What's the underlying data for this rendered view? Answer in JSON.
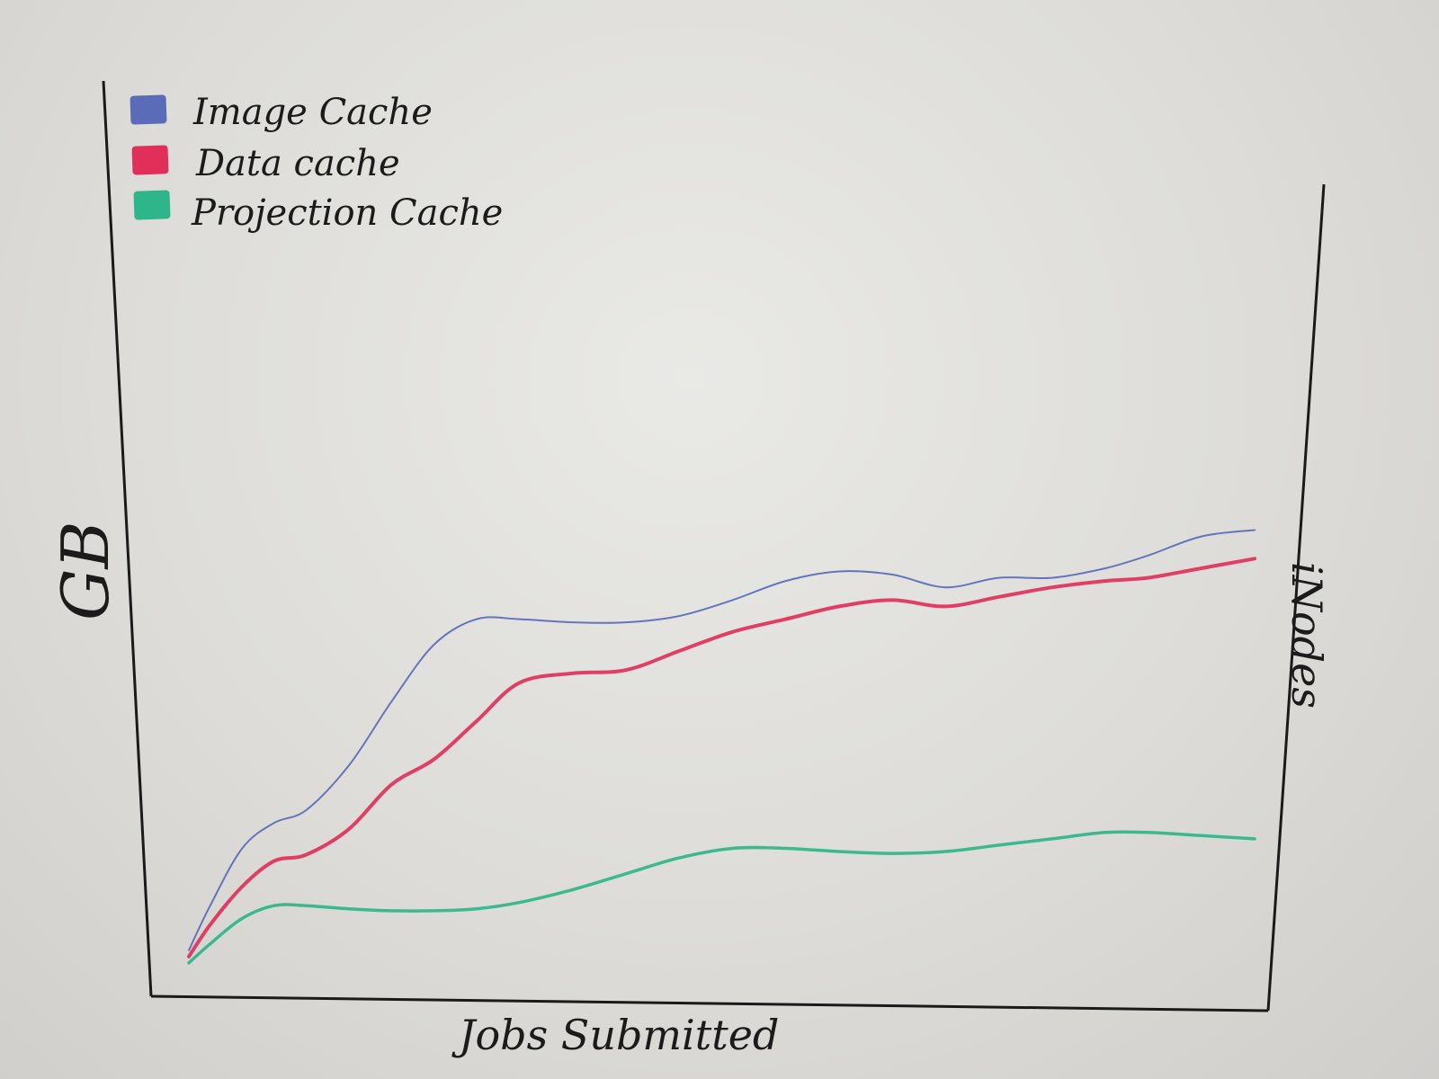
{
  "chart_data": {
    "type": "line",
    "title": "",
    "xlabel": "Jobs Submitted",
    "ylabel": "GB",
    "right_label": "iNodes",
    "xlim": [
      0,
      100
    ],
    "ylim": [
      0,
      100
    ],
    "grid": false,
    "legend_position": "top-left",
    "x": [
      0,
      2,
      5,
      8,
      11,
      15,
      19,
      23,
      27,
      31,
      36,
      41,
      46,
      51,
      56,
      61,
      66,
      71,
      76,
      81,
      86,
      90,
      95,
      100
    ],
    "series": [
      {
        "name": "Image Cache",
        "color": "#5a6bb8",
        "values": [
          3,
          10,
          19,
          23,
          25,
          32,
          42,
          51,
          55,
          55,
          54.5,
          54.5,
          55.5,
          58,
          61,
          62.5,
          62,
          60,
          61.5,
          61.5,
          63,
          65,
          68,
          69
        ]
      },
      {
        "name": "Data cache",
        "color": "#e0305a",
        "values": [
          2,
          7,
          13,
          17,
          18,
          22,
          29,
          33,
          39,
          45,
          46.5,
          47,
          50,
          53,
          55,
          57,
          58,
          57,
          58.5,
          60,
          61,
          61.5,
          63,
          64.5
        ]
      },
      {
        "name": "Projection Cache",
        "color": "#2fb58a",
        "values": [
          1,
          4,
          8,
          10,
          10,
          9.5,
          9.2,
          9.2,
          9.5,
          10.5,
          12.5,
          15,
          17.5,
          19,
          19,
          18.5,
          18.2,
          18.5,
          19.5,
          20.5,
          21.5,
          21.5,
          21,
          20.5
        ]
      }
    ]
  }
}
